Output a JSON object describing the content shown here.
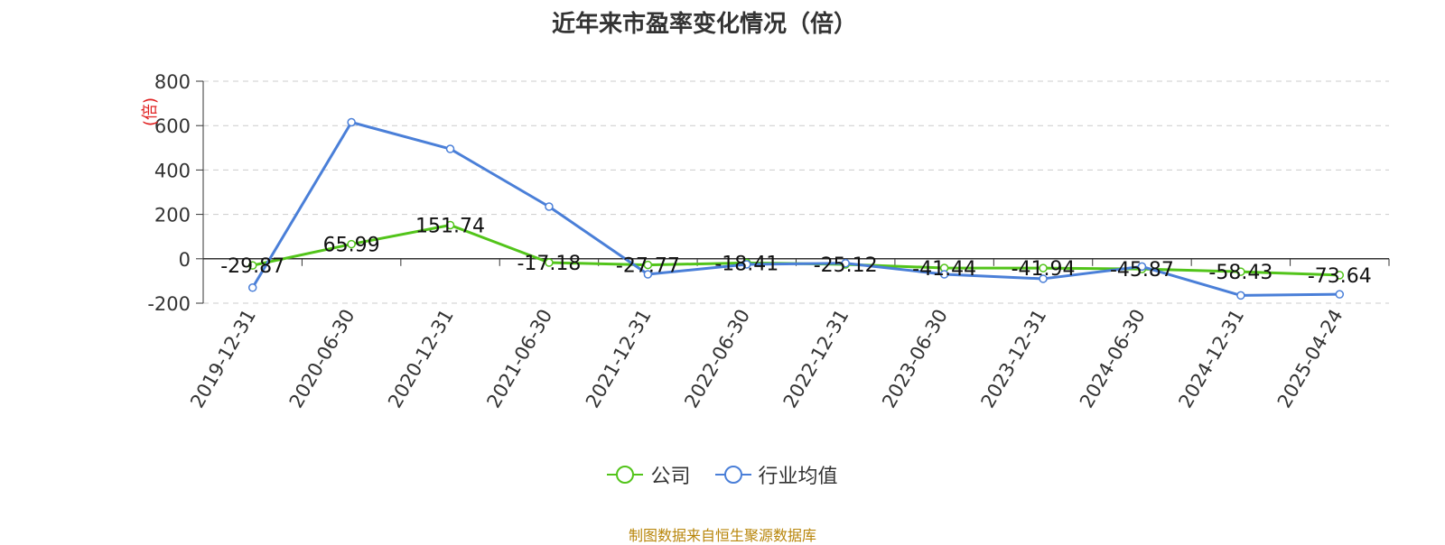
{
  "chart_data": {
    "type": "line",
    "title": "近年来市盈率变化情况（倍）",
    "ylabel": "(倍)",
    "ylim": [
      -200,
      800
    ],
    "yticks": [
      -200,
      0,
      200,
      400,
      600,
      800
    ],
    "categories": [
      "2019-12-31",
      "2020-06-30",
      "2020-12-31",
      "2021-06-30",
      "2021-12-31",
      "2022-06-30",
      "2022-12-31",
      "2023-06-30",
      "2023-12-31",
      "2024-06-30",
      "2024-12-31",
      "2025-04-24"
    ],
    "series": [
      {
        "name": "公司",
        "color": "#52c41a",
        "values": [
          -29.87,
          65.99,
          151.74,
          -17.18,
          -27.77,
          -18.41,
          -25.12,
          -41.44,
          -41.94,
          -45.87,
          -58.43,
          -73.64
        ],
        "labels": [
          "-29.87",
          "65.99",
          "151.74",
          "-17.18",
          "-27.77",
          "-18.41",
          "-25.12",
          "-41.44",
          "-41.94",
          "-45.87",
          "-58.43",
          "-73.64"
        ]
      },
      {
        "name": "行业均值",
        "color": "#4a7fd8",
        "values": [
          -130,
          615,
          495,
          235,
          -70,
          -25,
          -20,
          -70,
          -90,
          -35,
          -165,
          -160
        ]
      }
    ],
    "grid": true,
    "legend_position": "bottom"
  },
  "source_note": "制图数据来自恒生聚源数据库"
}
